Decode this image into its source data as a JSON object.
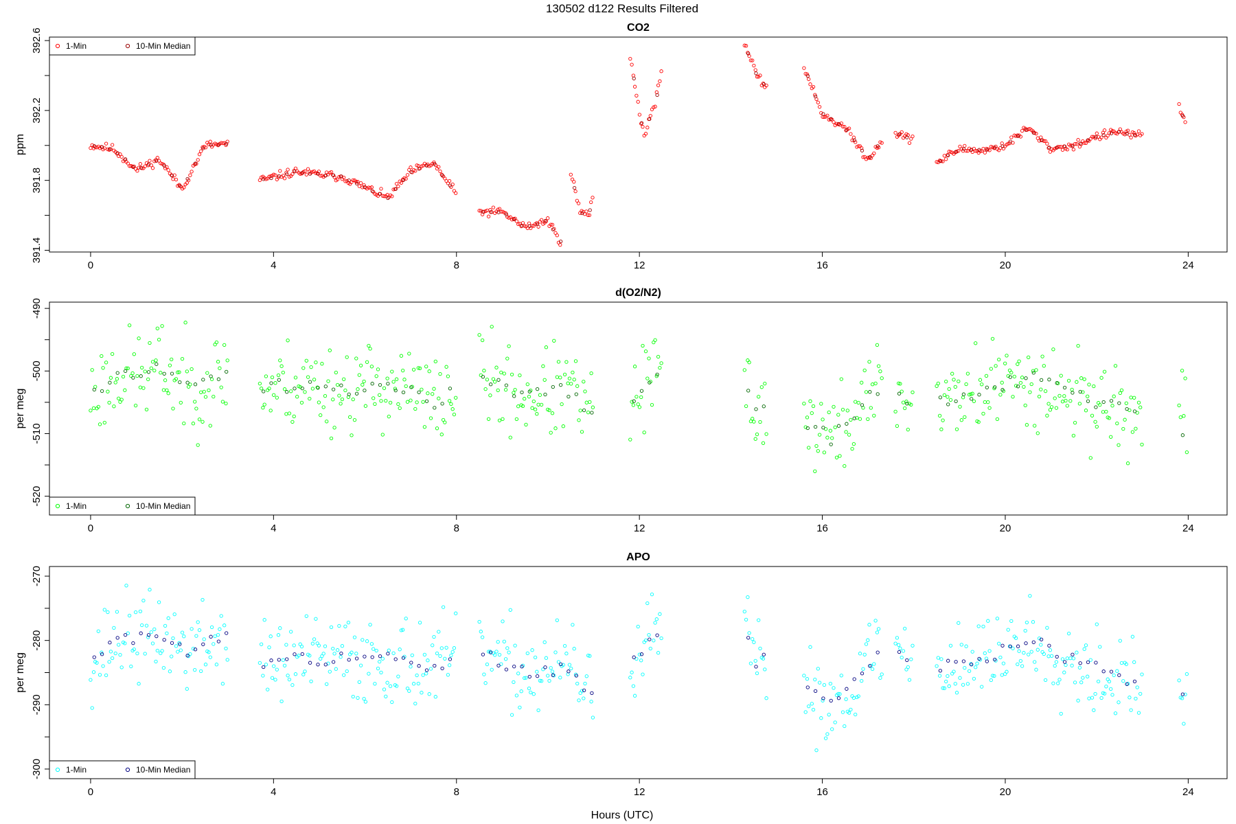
{
  "figure": {
    "title": "130502   d122   Results Filtered",
    "xlabel": "Hours (UTC)"
  },
  "chart_data": [
    {
      "type": "scatter",
      "title": "CO2",
      "xlabel": "Hours (UTC)",
      "ylabel": "ppm",
      "xlim": [
        -0.9,
        24.85
      ],
      "ylim": [
        391.39,
        392.62
      ],
      "xticks": [
        "0",
        "4",
        "8",
        "12",
        "16",
        "20",
        "24"
      ],
      "yticks": [
        "391.4",
        "391.8",
        "392.2",
        "392.6"
      ],
      "grid": false,
      "legend_position": "top-left",
      "legend": [
        "1-Min",
        "10-Min Median"
      ],
      "series": [
        {
          "name": "1-Min",
          "color": "#ff0000",
          "segments": [
            {
              "x": [
                0.0,
                0.5,
                1.0,
                1.5,
                2.0,
                2.5,
                3.0
              ],
              "y": [
                392.0,
                391.98,
                391.86,
                391.92,
                391.75,
                392.0,
                392.01
              ]
            },
            {
              "x": [
                3.7,
                4.5,
                5.5,
                6.5,
                7.0,
                7.5,
                8.0
              ],
              "y": [
                391.8,
                391.85,
                391.82,
                391.7,
                391.85,
                391.9,
                391.72
              ]
            },
            {
              "x": [
                8.5,
                9.0,
                9.5,
                10.0,
                10.3
              ],
              "y": [
                391.62,
                391.62,
                391.53,
                391.57,
                391.44
              ]
            },
            {
              "x": [
                10.5,
                10.7,
                10.9,
                11.0
              ],
              "y": [
                391.85,
                391.62,
                391.6,
                391.75
              ]
            },
            {
              "x": [
                11.8,
                12.1,
                12.4,
                12.5
              ],
              "y": [
                392.5,
                392.05,
                392.3,
                392.48
              ]
            },
            {
              "x": [
                14.3,
                14.6,
                14.8
              ],
              "y": [
                392.58,
                392.38,
                392.33
              ]
            },
            {
              "x": [
                15.6,
                16.0,
                16.5,
                17.0,
                17.3
              ],
              "y": [
                392.45,
                392.18,
                392.1,
                391.92,
                392.03
              ]
            },
            {
              "x": [
                17.6,
                17.9,
                18.0
              ],
              "y": [
                392.07,
                392.04,
                392.05
              ]
            },
            {
              "x": [
                18.5,
                19.0,
                19.5,
                20.0,
                20.5,
                21.0,
                21.5,
                22.0,
                22.5,
                23.0
              ],
              "y": [
                391.9,
                391.98,
                391.97,
                392.0,
                392.1,
                391.98,
                392.0,
                392.05,
                392.08,
                392.05
              ]
            },
            {
              "x": [
                23.8,
                23.95
              ],
              "y": [
                392.22,
                392.12
              ]
            }
          ]
        },
        {
          "name": "10-Min Median",
          "color": "#990000",
          "segments": []
        }
      ]
    },
    {
      "type": "scatter",
      "title": "d(O2/N2)",
      "xlabel": "Hours (UTC)",
      "ylabel": "per meg",
      "xlim": [
        -0.9,
        24.85
      ],
      "ylim": [
        -523,
        -489
      ],
      "xticks": [
        "0",
        "4",
        "8",
        "12",
        "16",
        "20",
        "24"
      ],
      "yticks": [
        "-490",
        "-500",
        "-510",
        "-520"
      ],
      "grid": false,
      "legend_position": "bottom-left",
      "legend": [
        "1-Min",
        "10-Min Median"
      ],
      "series": [
        {
          "name": "1-Min",
          "color": "#00ff00",
          "segments": [
            {
              "x": [
                0.0,
                0.7,
                1.2,
                1.5,
                2.2,
                3.0
              ],
              "y": [
                -504,
                -500,
                -501,
                -499,
                -503,
                -500
              ]
            },
            {
              "x": [
                3.7,
                4.5,
                5.5,
                6.5,
                7.5,
                8.0
              ],
              "y": [
                -503,
                -502,
                -503,
                -502,
                -505,
                -503
              ]
            },
            {
              "x": [
                8.5,
                9.5,
                10.5,
                11.0
              ],
              "y": [
                -501,
                -504,
                -503,
                -508
              ]
            },
            {
              "x": [
                11.8,
                12.2,
                12.5
              ],
              "y": [
                -505,
                -502,
                -500
              ]
            },
            {
              "x": [
                14.3,
                14.6,
                14.8
              ],
              "y": [
                -502,
                -507,
                -504
              ]
            },
            {
              "x": [
                15.6,
                16.2,
                16.8,
                17.3
              ],
              "y": [
                -508,
                -511,
                -506,
                -502
              ]
            },
            {
              "x": [
                17.6,
                18.0
              ],
              "y": [
                -503,
                -505
              ]
            },
            {
              "x": [
                18.5,
                19.5,
                20.5,
                21.5,
                22.5,
                23.0
              ],
              "y": [
                -505,
                -503,
                -501,
                -504,
                -506,
                -508
              ]
            },
            {
              "x": [
                23.8,
                24.0
              ],
              "y": [
                -509,
                -510
              ]
            }
          ]
        },
        {
          "name": "10-Min Median",
          "color": "#006600",
          "segments": []
        }
      ]
    },
    {
      "type": "scatter",
      "title": "APO",
      "xlabel": "Hours (UTC)",
      "ylabel": "per meg",
      "xlim": [
        -0.9,
        24.85
      ],
      "ylim": [
        -301.5,
        -268.5
      ],
      "xticks": [
        "0",
        "4",
        "8",
        "12",
        "16",
        "20",
        "24"
      ],
      "yticks": [
        "-270",
        "-280",
        "-290",
        "-300"
      ],
      "grid": false,
      "legend_position": "bottom-left",
      "legend": [
        "1-Min",
        "10-Min Median"
      ],
      "series": [
        {
          "name": "1-Min",
          "color": "#00ffff",
          "segments": [
            {
              "x": [
                0.0,
                0.7,
                1.2,
                1.5,
                2.2,
                3.0
              ],
              "y": [
                -283,
                -279,
                -280,
                -279,
                -282,
                -279
              ]
            },
            {
              "x": [
                3.7,
                4.5,
                5.5,
                6.5,
                7.5,
                8.0
              ],
              "y": [
                -284,
                -283,
                -283,
                -283,
                -284,
                -283
              ]
            },
            {
              "x": [
                8.5,
                9.5,
                10.5,
                11.0
              ],
              "y": [
                -282,
                -285,
                -284,
                -289
              ]
            },
            {
              "x": [
                11.8,
                12.2,
                12.5
              ],
              "y": [
                -283,
                -281,
                -278
              ]
            },
            {
              "x": [
                14.3,
                14.6,
                14.8
              ],
              "y": [
                -279,
                -285,
                -282
              ]
            },
            {
              "x": [
                15.6,
                16.2,
                16.8,
                17.3
              ],
              "y": [
                -287,
                -290,
                -286,
                -280
              ]
            },
            {
              "x": [
                17.6,
                18.0
              ],
              "y": [
                -281,
                -284
              ]
            },
            {
              "x": [
                18.5,
                19.5,
                20.5,
                21.5,
                22.5,
                23.0
              ],
              "y": [
                -284,
                -283,
                -280,
                -283,
                -286,
                -288
              ]
            },
            {
              "x": [
                23.8,
                24.0
              ],
              "y": [
                -287,
                -289
              ]
            }
          ]
        },
        {
          "name": "10-Min Median",
          "color": "#000080",
          "segments": []
        }
      ]
    }
  ]
}
